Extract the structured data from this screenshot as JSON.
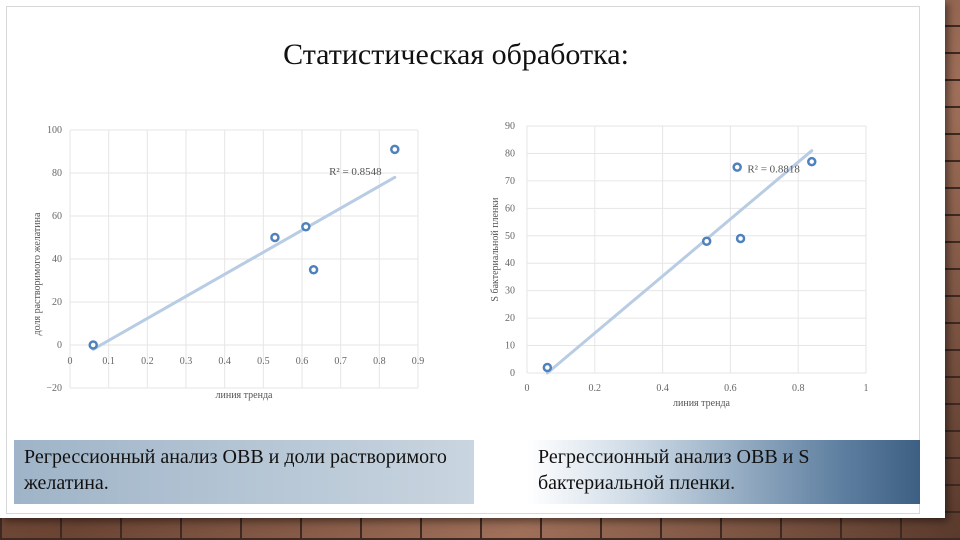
{
  "title": "Статистическая обработка:",
  "chart_data": [
    {
      "type": "scatter",
      "ylabel": "доля растворимого желатина",
      "xlabel": "линия тренда",
      "xlim": [
        0,
        0.9
      ],
      "ylim": [
        -20,
        100
      ],
      "x_ticks": [
        "0",
        "0.1",
        "0.2",
        "0.3",
        "0.4",
        "0.5",
        "0.6",
        "0.7",
        "0.8",
        "0.9"
      ],
      "y_ticks": [
        "-20",
        "0",
        "20",
        "40",
        "60",
        "80",
        "100"
      ],
      "points": [
        {
          "x": 0.06,
          "y": 0
        },
        {
          "x": 0.53,
          "y": 50
        },
        {
          "x": 0.61,
          "y": 55
        },
        {
          "x": 0.63,
          "y": 35
        },
        {
          "x": 0.84,
          "y": 91
        }
      ],
      "trendline": {
        "x": [
          0.06,
          0.84
        ],
        "y": [
          -2,
          78
        ]
      },
      "r2_label": "R² = 0.8548",
      "r2_position": {
        "x": 0.67,
        "y": 79
      },
      "color": "#4f81bd",
      "trend_color": "#b8cce4",
      "caption": "Регрессионный анализ ОВВ и доли растворимого желатина."
    },
    {
      "type": "scatter",
      "ylabel": "S бактериальной пленки",
      "xlabel": "линия тренда",
      "xlim": [
        0,
        1
      ],
      "ylim": [
        0,
        90
      ],
      "x_ticks": [
        "0",
        "0.2",
        "0.4",
        "0.6",
        "0.8",
        "1"
      ],
      "y_ticks": [
        "0",
        "10",
        "20",
        "30",
        "40",
        "50",
        "60",
        "70",
        "80",
        "90"
      ],
      "points": [
        {
          "x": 0.06,
          "y": 2
        },
        {
          "x": 0.53,
          "y": 48
        },
        {
          "x": 0.62,
          "y": 75
        },
        {
          "x": 0.63,
          "y": 49
        },
        {
          "x": 0.84,
          "y": 77
        }
      ],
      "trendline": {
        "x": [
          0.06,
          0.84
        ],
        "y": [
          0,
          81
        ]
      },
      "r2_label": "R² = 0.8818",
      "r2_position": {
        "x": 0.65,
        "y": 73
      },
      "color": "#4f81bd",
      "trend_color": "#b8cce4",
      "caption": "Регрессионный анализ ОВВ и S бактериальной пленки."
    }
  ]
}
